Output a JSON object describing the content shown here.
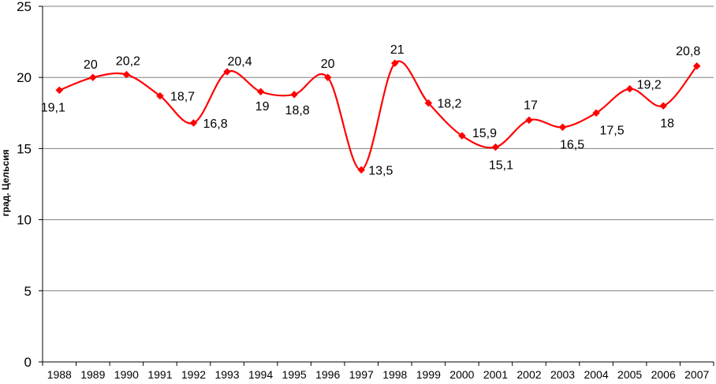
{
  "chart_data": {
    "type": "line",
    "title": "",
    "xlabel": "",
    "ylabel": "град. Цельсия",
    "ylim": [
      0,
      25
    ],
    "yticks": [
      "0",
      "5",
      "10",
      "15",
      "20",
      "25"
    ],
    "categories": [
      "1988",
      "1989",
      "1990",
      "1991",
      "1992",
      "1993",
      "1994",
      "1995",
      "1996",
      "1997",
      "1998",
      "1999",
      "2000",
      "2001",
      "2002",
      "2003",
      "2004",
      "2005",
      "2006",
      "2007"
    ],
    "series": [
      {
        "values": [
          19.1,
          20,
          20.2,
          18.7,
          16.8,
          20.4,
          19,
          18.8,
          20,
          13.5,
          21,
          18.2,
          15.9,
          15.1,
          17,
          16.5,
          17.5,
          19.2,
          18,
          20.8
        ],
        "labels": [
          "19,1",
          "20",
          "20,2",
          "18,7",
          "16,8",
          "20,4",
          "19",
          "18,8",
          "20",
          "13,5",
          "21",
          "18,2",
          "15,9",
          "15,1",
          "17",
          "16,5",
          "17,5",
          "19,2",
          "18",
          "20,8"
        ],
        "color": "#ff0000"
      }
    ],
    "grid": true,
    "smooth": true,
    "marker": "diamond",
    "legend": "none"
  }
}
